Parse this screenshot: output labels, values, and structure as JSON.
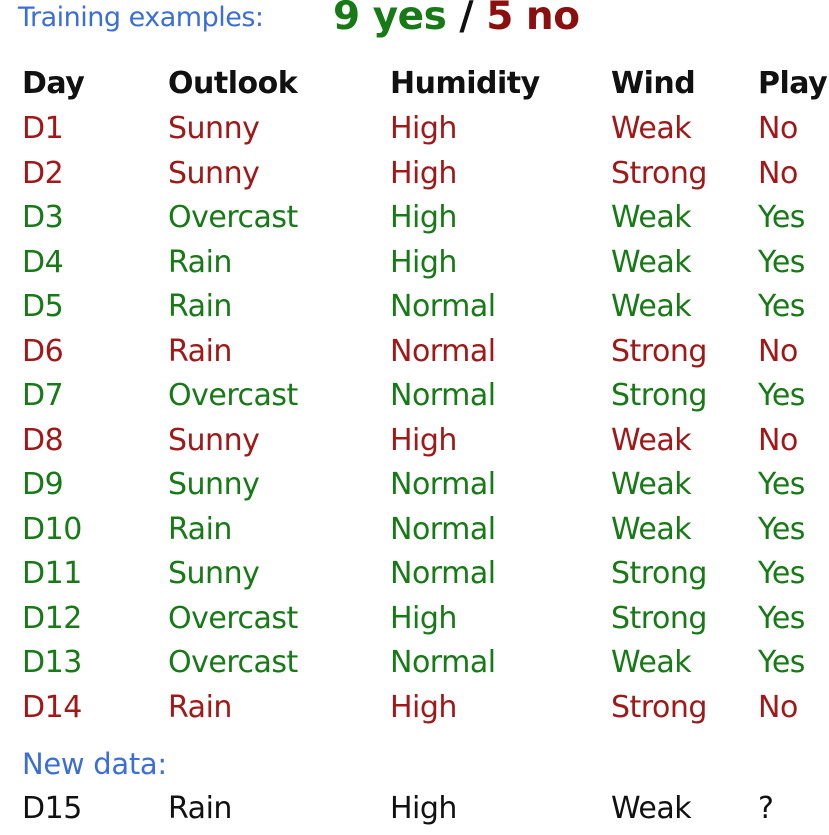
{
  "header": {
    "label": "Training examples:",
    "yes_count": "9 yes",
    "separator": "/",
    "no_count": "5 no"
  },
  "columns": [
    "Day",
    "Outlook",
    "Humidity",
    "Wind",
    "Play"
  ],
  "rows": [
    {
      "day": "D1",
      "outlook": "Sunny",
      "humidity": "High",
      "wind": "Weak",
      "play": "No"
    },
    {
      "day": "D2",
      "outlook": "Sunny",
      "humidity": "High",
      "wind": "Strong",
      "play": "No"
    },
    {
      "day": "D3",
      "outlook": "Overcast",
      "humidity": "High",
      "wind": "Weak",
      "play": "Yes"
    },
    {
      "day": "D4",
      "outlook": "Rain",
      "humidity": "High",
      "wind": "Weak",
      "play": "Yes"
    },
    {
      "day": "D5",
      "outlook": "Rain",
      "humidity": "Normal",
      "wind": "Weak",
      "play": "Yes"
    },
    {
      "day": "D6",
      "outlook": "Rain",
      "humidity": "Normal",
      "wind": "Strong",
      "play": "No"
    },
    {
      "day": "D7",
      "outlook": "Overcast",
      "humidity": "Normal",
      "wind": "Strong",
      "play": "Yes"
    },
    {
      "day": "D8",
      "outlook": "Sunny",
      "humidity": "High",
      "wind": "Weak",
      "play": "No"
    },
    {
      "day": "D9",
      "outlook": "Sunny",
      "humidity": "Normal",
      "wind": "Weak",
      "play": "Yes"
    },
    {
      "day": "D10",
      "outlook": "Rain",
      "humidity": "Normal",
      "wind": "Weak",
      "play": "Yes"
    },
    {
      "day": "D11",
      "outlook": "Sunny",
      "humidity": "Normal",
      "wind": "Strong",
      "play": "Yes"
    },
    {
      "day": "D12",
      "outlook": "Overcast",
      "humidity": "High",
      "wind": "Strong",
      "play": "Yes"
    },
    {
      "day": "D13",
      "outlook": "Overcast",
      "humidity": "Normal",
      "wind": "Weak",
      "play": "Yes"
    },
    {
      "day": "D14",
      "outlook": "Rain",
      "humidity": "High",
      "wind": "Strong",
      "play": "No"
    }
  ],
  "new_data": {
    "label": "New data:",
    "row": {
      "day": "D15",
      "outlook": "Rain",
      "humidity": "High",
      "wind": "Weak",
      "play": "?"
    }
  },
  "colors": {
    "yes": "#177a17",
    "no": "#a01818",
    "label_blue": "#3b6fd6"
  }
}
